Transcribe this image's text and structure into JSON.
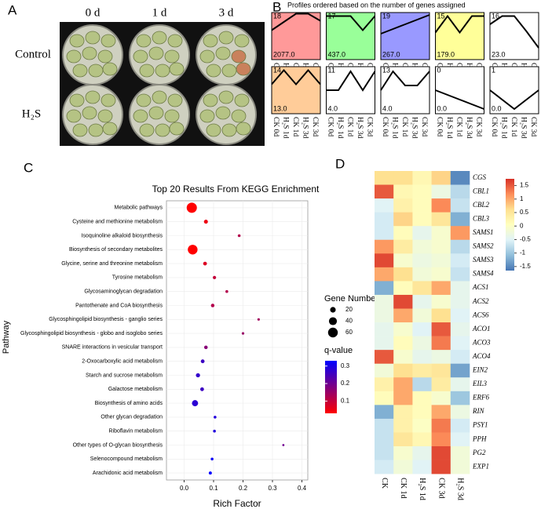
{
  "photo_panel": {
    "label": "A",
    "columns": [
      "0 d",
      "1 d",
      "3 d"
    ],
    "rows": [
      "Control",
      "H₂S"
    ]
  },
  "chart_data": [
    {
      "type": "profiles",
      "panel": "B",
      "title": "Profiles ordered based on the number of genes assigned",
      "categories": [
        "CK 0d",
        "H₂S 1d",
        "CK 1d",
        "H₂S 3d",
        "CK 3d"
      ],
      "ylim": [
        0,
        4
      ],
      "profiles": [
        {
          "name": "18",
          "count": 2077,
          "count_label": "2077.0",
          "color": "#ff9999",
          "values": [
            2.5,
            3.2,
            3.9,
            3.9,
            3.3
          ]
        },
        {
          "name": "17",
          "count": 437,
          "count_label": "437.0",
          "color": "#99ff99",
          "values": [
            3.7,
            3.7,
            3.7,
            2.5,
            3.7
          ]
        },
        {
          "name": "19",
          "count": 267,
          "count_label": "267.0",
          "color": "#9999ff",
          "values": [
            2.2,
            2.6,
            3.0,
            3.4,
            3.8
          ]
        },
        {
          "name": "15",
          "count": 179,
          "count_label": "179.0",
          "color": "#ffff99",
          "values": [
            2.3,
            3.7,
            2.3,
            3.7,
            3.7
          ]
        },
        {
          "name": "16",
          "count": 23,
          "count_label": "23.0",
          "color": "#ffffff",
          "values": [
            3.0,
            3.7,
            3.7,
            2.4,
            1.0
          ]
        },
        {
          "name": "14",
          "count": 13,
          "count_label": "13.0",
          "color": "#ffcc99",
          "values": [
            2.5,
            3.7,
            2.5,
            3.7,
            2.5
          ]
        },
        {
          "name": "11",
          "count": 4,
          "count_label": "4.0",
          "color": "#ffffff",
          "values": [
            2.0,
            2.0,
            3.6,
            2.0,
            3.6
          ]
        },
        {
          "name": "13",
          "count": 4,
          "count_label": "4.0",
          "color": "#ffffff",
          "values": [
            2.0,
            3.6,
            2.4,
            2.4,
            3.6
          ]
        },
        {
          "name": "0",
          "count": 0,
          "count_label": "0.0",
          "color": "#ffffff",
          "values": [
            2.0,
            1.6,
            1.2,
            0.8,
            0.4
          ]
        },
        {
          "name": "1",
          "count": 0,
          "count_label": "0.0",
          "color": "#ffffff",
          "values": [
            2.0,
            1.2,
            0.4,
            1.2,
            2.0
          ]
        }
      ]
    },
    {
      "type": "dotplot",
      "panel": "C",
      "title": "Top 20 Results From KEGG Enrichment",
      "x_label": "Rich Factor",
      "y_label": "Pathway",
      "grid": true,
      "categories": [
        "Metabolic pathways",
        "Cysteine and methionine metabolism",
        "Isoquinoline alkaloid biosynthesis",
        "Biosynthesis of secondary metabolites",
        "Glycine, serine and threonine metabolism",
        "Tyrosine metabolism",
        "Glycosaminoglycan degradation",
        "Pantothenate and CoA biosynthesis",
        "Glycosphingolipid biosynthesis - ganglio series",
        "Glycosphingolipid biosynthesis - globo and isoglobo series",
        "SNARE interactions in vesicular transport",
        "2-Oxocarboxylic acid metabolism",
        "Starch and sucrose metabolism",
        "Galactose metabolism",
        "Biosynthesis of amino acids",
        "Other glycan degradation",
        "Riboflavin metabolism",
        "Other types of O-glycan biosynthesis",
        "Selenocompound metabolism",
        "Arachidonic acid metabolism"
      ],
      "x": [
        0.026,
        0.074,
        0.187,
        0.029,
        0.071,
        0.103,
        0.145,
        0.097,
        0.253,
        0.2,
        0.074,
        0.063,
        0.047,
        0.061,
        0.037,
        0.105,
        0.103,
        0.337,
        0.095,
        0.089
      ],
      "sizes": [
        66,
        10,
        5,
        60,
        9,
        7,
        5,
        8,
        4,
        4,
        8,
        9,
        11,
        9,
        24,
        5,
        5,
        3,
        5,
        6
      ],
      "q_values": [
        0.02,
        0.05,
        0.12,
        0.02,
        0.07,
        0.1,
        0.12,
        0.12,
        0.14,
        0.15,
        0.17,
        0.26,
        0.27,
        0.26,
        0.28,
        0.29,
        0.29,
        0.2,
        0.32,
        0.33
      ],
      "xlim": [
        -0.06,
        0.42
      ],
      "xticks": [
        {
          "value": 0,
          "label": "0.0"
        },
        0.1,
        0.2,
        0.3,
        0.4
      ],
      "size_legend": {
        "title": "Gene Number",
        "values": [
          20,
          40,
          60
        ]
      },
      "color_legend": {
        "title": "q-value",
        "lim": [
          0.03,
          0.33
        ],
        "ticks": [
          0.1,
          0.2,
          0.3
        ],
        "low_color": "#ff0000",
        "high_color": "#0000ff"
      }
    },
    {
      "type": "heatmap",
      "panel": "D",
      "rows": [
        "CGS",
        "CBL1",
        "CBL2",
        "CBL3",
        "SAMS1",
        "SAMS2",
        "SAMS3",
        "SAMS4",
        "ACS1",
        "ACS2",
        "ACS6",
        "ACO1",
        "ACO3",
        "ACO4",
        "EIN2",
        "EIL3",
        "ERF6",
        "RIN",
        "PSY1",
        "PPH",
        "PG2",
        "EXP1"
      ],
      "columns": [
        "CK",
        "CK 1d",
        "H₂S 1d",
        "CK 3d",
        "H₂S 3d"
      ],
      "values": [
        [
          0.6,
          0.6,
          0.2,
          0.7,
          -1.5
        ],
        [
          1.5,
          0.2,
          0.1,
          -0.3,
          -0.8
        ],
        [
          -0.5,
          0.3,
          0.1,
          1.2,
          -0.7
        ],
        [
          -0.6,
          0.7,
          0.1,
          0.5,
          -1.2
        ],
        [
          -0.6,
          0.1,
          -0.4,
          -0.1,
          1.1
        ],
        [
          1.1,
          0.4,
          -0.2,
          -0.1,
          -0.8
        ],
        [
          1.6,
          -0.1,
          -0.3,
          -0.2,
          -0.6
        ],
        [
          1.0,
          0.6,
          -0.2,
          -0.1,
          -0.7
        ],
        [
          -1.2,
          0.1,
          0.5,
          1.0,
          -0.4
        ],
        [
          -0.3,
          1.6,
          -0.4,
          -0.1,
          -0.4
        ],
        [
          -0.3,
          1.0,
          -0.2,
          0.6,
          -0.5
        ],
        [
          -0.4,
          -0.1,
          -0.5,
          1.5,
          -0.4
        ],
        [
          -0.4,
          0.1,
          -0.3,
          1.3,
          -0.5
        ],
        [
          1.5,
          -0.1,
          -0.4,
          -0.3,
          -0.6
        ],
        [
          -0.2,
          0.6,
          0.4,
          0.5,
          -1.3
        ],
        [
          0.3,
          1.0,
          -0.8,
          0.4,
          -0.4
        ],
        [
          0.1,
          1.0,
          0.1,
          -0.1,
          -1.0
        ],
        [
          -1.2,
          0.3,
          0.1,
          1.0,
          -0.3
        ],
        [
          -0.7,
          0.3,
          0.0,
          1.3,
          -0.6
        ],
        [
          -0.7,
          0.5,
          0.2,
          1.2,
          -0.5
        ],
        [
          -0.7,
          -0.1,
          -0.4,
          1.6,
          -0.2
        ],
        [
          -0.6,
          -0.2,
          -0.5,
          1.6,
          -0.2
        ]
      ],
      "clim": [
        -1.65,
        1.75
      ],
      "colorbar_ticks": [
        1.5,
        1,
        0.5,
        0,
        -0.5,
        -1,
        -1.5
      ],
      "colors": [
        "#4575b4",
        "#91bfdb",
        "#e0f3f8",
        "#ffffbf",
        "#fee090",
        "#fc8d59",
        "#d73027"
      ]
    }
  ]
}
